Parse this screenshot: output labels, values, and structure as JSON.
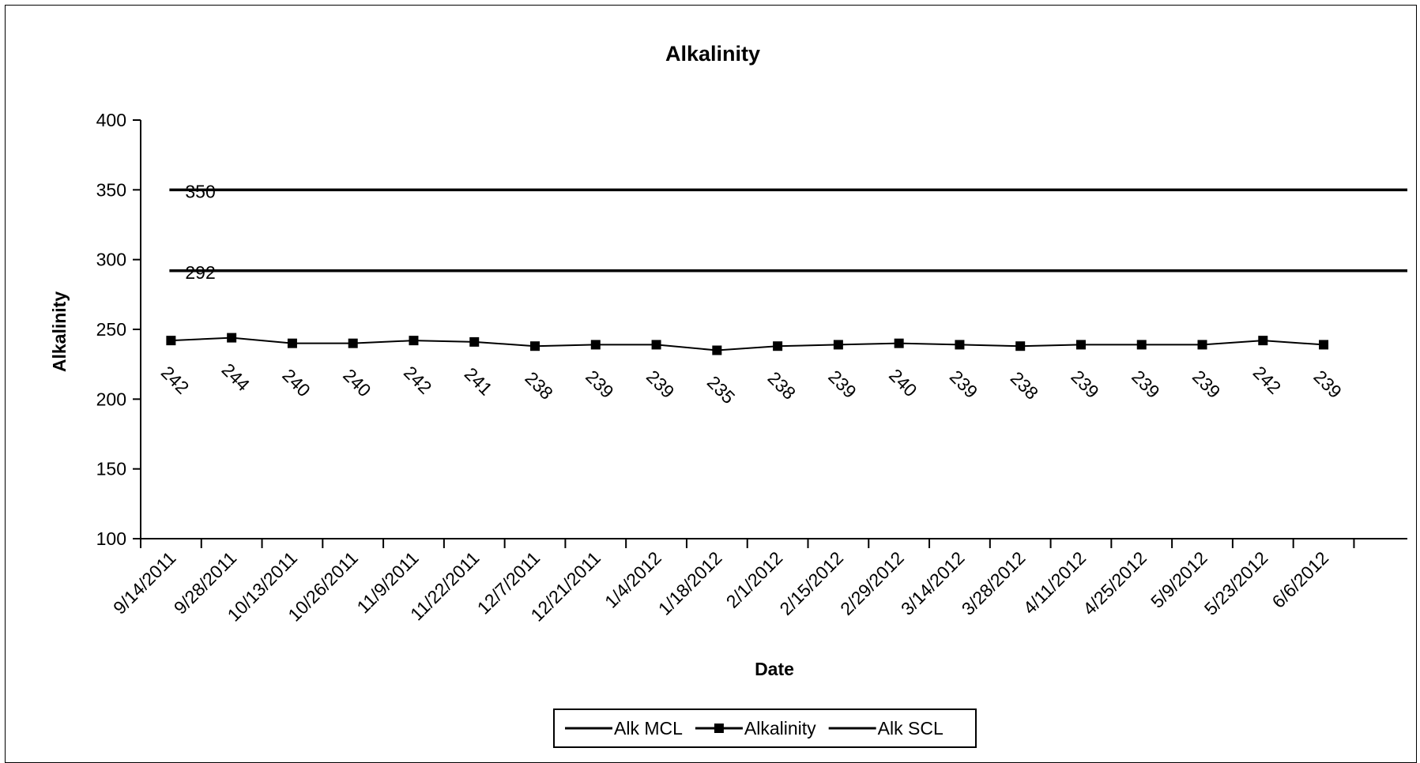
{
  "chart_data": {
    "type": "line",
    "title": "Alkalinity",
    "xlabel": "Date",
    "ylabel": "Alkalinity",
    "ylim": [
      100,
      400
    ],
    "y_ticks": [
      100,
      150,
      200,
      250,
      300,
      350,
      400
    ],
    "grid": false,
    "legend_position": "bottom",
    "categories": [
      "9/14/2011",
      "9/28/2011",
      "10/13/2011",
      "10/26/2011",
      "11/9/2011",
      "11/22/2011",
      "12/7/2011",
      "12/21/2011",
      "1/4/2012",
      "1/18/2012",
      "2/1/2012",
      "2/15/2012",
      "2/29/2012",
      "3/14/2012",
      "3/28/2012",
      "4/11/2012",
      "4/25/2012",
      "5/9/2012",
      "5/23/2012",
      "6/6/2012"
    ],
    "series": [
      {
        "name": "Alk MCL",
        "values": [
          350,
          350,
          350,
          350,
          350,
          350,
          350,
          350,
          350,
          350,
          350,
          350,
          350,
          350,
          350,
          350,
          350,
          350,
          350,
          350
        ],
        "label_text": "350",
        "marker": "none",
        "color": "#000000"
      },
      {
        "name": "Alkalinity",
        "values": [
          242,
          244,
          240,
          240,
          242,
          241,
          238,
          239,
          239,
          235,
          238,
          239,
          240,
          239,
          238,
          239,
          239,
          239,
          242,
          239
        ],
        "marker": "square",
        "color": "#000000"
      },
      {
        "name": "Alk SCL",
        "values": [
          292,
          292,
          292,
          292,
          292,
          292,
          292,
          292,
          292,
          292,
          292,
          292,
          292,
          292,
          292,
          292,
          292,
          292,
          292,
          292
        ],
        "label_text": "292",
        "marker": "none",
        "color": "#000000"
      }
    ]
  }
}
